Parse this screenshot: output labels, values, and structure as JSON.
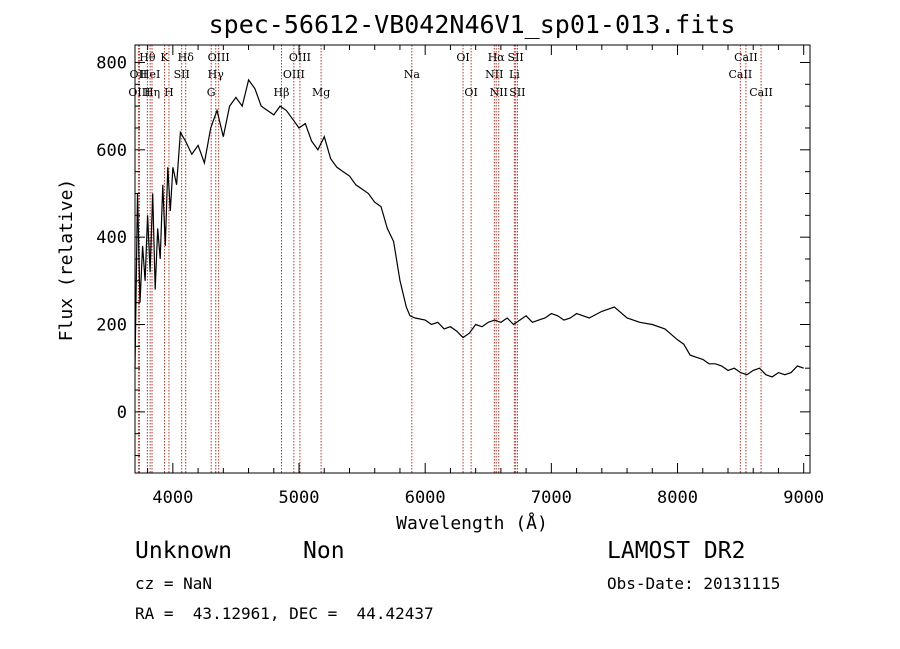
{
  "chart_data": {
    "type": "line",
    "title": "spec-56612-VB042N46V1_sp01-013.fits",
    "xlabel": "Wavelength (Å)",
    "ylabel": "Flux (relative)",
    "xlim": [
      3700,
      9050
    ],
    "ylim": [
      -140,
      840
    ],
    "xticks": [
      4000,
      5000,
      6000,
      7000,
      8000,
      9000
    ],
    "yticks": [
      0,
      200,
      400,
      600,
      800
    ],
    "line_color": "#000000",
    "marker_color": "#b03a2e",
    "spectrum": {
      "x": [
        3700,
        3720,
        3740,
        3760,
        3780,
        3800,
        3820,
        3840,
        3860,
        3880,
        3900,
        3920,
        3940,
        3960,
        3980,
        4000,
        4030,
        4060,
        4100,
        4150,
        4200,
        4250,
        4300,
        4350,
        4400,
        4450,
        4500,
        4550,
        4600,
        4650,
        4700,
        4750,
        4800,
        4850,
        4900,
        4950,
        5000,
        5050,
        5100,
        5150,
        5200,
        5250,
        5300,
        5350,
        5400,
        5450,
        5500,
        5550,
        5600,
        5650,
        5700,
        5750,
        5800,
        5850,
        5880,
        5920,
        6000,
        6050,
        6100,
        6150,
        6200,
        6250,
        6300,
        6350,
        6400,
        6450,
        6500,
        6550,
        6600,
        6650,
        6700,
        6750,
        6800,
        6850,
        6900,
        6950,
        7000,
        7050,
        7100,
        7150,
        7200,
        7300,
        7400,
        7500,
        7600,
        7700,
        7800,
        7900,
        8000,
        8050,
        8100,
        8150,
        8200,
        8250,
        8300,
        8350,
        8400,
        8450,
        8500,
        8550,
        8600,
        8650,
        8700,
        8750,
        8800,
        8850,
        8900,
        8950,
        9000
      ],
      "y": [
        100,
        500,
        250,
        380,
        300,
        450,
        320,
        500,
        280,
        420,
        350,
        520,
        380,
        560,
        460,
        560,
        520,
        640,
        620,
        590,
        610,
        570,
        650,
        690,
        630,
        700,
        720,
        700,
        760,
        740,
        700,
        690,
        680,
        700,
        690,
        670,
        650,
        660,
        620,
        600,
        630,
        580,
        560,
        550,
        540,
        520,
        510,
        500,
        480,
        470,
        420,
        390,
        300,
        240,
        220,
        215,
        210,
        200,
        205,
        190,
        195,
        185,
        170,
        180,
        200,
        195,
        205,
        210,
        205,
        215,
        200,
        210,
        220,
        205,
        210,
        215,
        225,
        220,
        210,
        215,
        225,
        215,
        230,
        240,
        215,
        205,
        200,
        190,
        165,
        155,
        130,
        125,
        120,
        110,
        110,
        105,
        95,
        100,
        90,
        85,
        95,
        100,
        85,
        80,
        90,
        85,
        90,
        105,
        100
      ]
    },
    "lines": [
      {
        "label": "Hθ",
        "wl": 3798,
        "row": 1
      },
      {
        "label": "OII",
        "wl": 3727,
        "row": 2
      },
      {
        "label": "HeI",
        "wl": 3820,
        "row": 2
      },
      {
        "label": "OIII",
        "wl": 3735,
        "row": 3
      },
      {
        "label": "Hη",
        "wl": 3835,
        "row": 3
      },
      {
        "label": "K",
        "wl": 3934,
        "row": 1
      },
      {
        "label": "SII",
        "wl": 4070,
        "row": 2
      },
      {
        "label": "H",
        "wl": 3969,
        "row": 3
      },
      {
        "label": "Hδ",
        "wl": 4102,
        "row": 1
      },
      {
        "label": "OIII",
        "wl": 4363,
        "row": 1
      },
      {
        "label": "Hγ",
        "wl": 4340,
        "row": 2
      },
      {
        "label": "G",
        "wl": 4304,
        "row": 3
      },
      {
        "label": "Hβ",
        "wl": 4861,
        "row": 3
      },
      {
        "label": "OIII",
        "wl": 5007,
        "row": 1
      },
      {
        "label": "OIII",
        "wl": 4959,
        "row": 2
      },
      {
        "label": "Mg",
        "wl": 5175,
        "row": 3
      },
      {
        "label": "Na",
        "wl": 5894,
        "row": 2
      },
      {
        "label": "OI",
        "wl": 6300,
        "row": 1
      },
      {
        "label": "OI",
        "wl": 6364,
        "row": 3
      },
      {
        "label": "Hα",
        "wl": 6563,
        "row": 1
      },
      {
        "label": "NII",
        "wl": 6548,
        "row": 2
      },
      {
        "label": "NII",
        "wl": 6583,
        "row": 3
      },
      {
        "label": "SII",
        "wl": 6717,
        "row": 1
      },
      {
        "label": "Li",
        "wl": 6707,
        "row": 2
      },
      {
        "label": "SII",
        "wl": 6731,
        "row": 3
      },
      {
        "label": "CaII",
        "wl": 8542,
        "row": 1
      },
      {
        "label": "CaII",
        "wl": 8498,
        "row": 2
      },
      {
        "label": "CaII",
        "wl": 8662,
        "row": 3
      }
    ]
  },
  "info": {
    "object_class": "Unknown",
    "object_subclass": "Non",
    "survey": "LAMOST DR2",
    "cz": "cz = NaN",
    "obs_date": "Obs-Date: 20131115",
    "coords": "RA =  43.12961, DEC =  44.42437"
  }
}
